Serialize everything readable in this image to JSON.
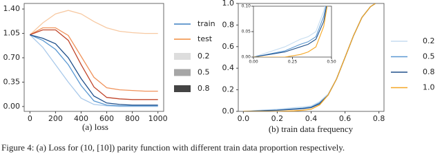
{
  "chart_data": [
    {
      "type": "line",
      "caption": "(a) loss",
      "x": [
        0,
        100,
        200,
        300,
        400,
        500,
        600,
        700,
        800,
        900,
        1000
      ],
      "xlim": [
        -45,
        1045
      ],
      "xticks": [
        0,
        200,
        400,
        600,
        800,
        1000
      ],
      "ylim": [
        -0.07,
        1.48
      ],
      "yticks": [
        {
          "value": 0,
          "label": "0.00"
        },
        {
          "value": 0.35,
          "label": "0.35"
        },
        {
          "value": 0.7,
          "label": "0.70"
        },
        {
          "value": 1.05,
          "label": "1.05"
        },
        {
          "value": 1.4,
          "label": "1.40"
        }
      ],
      "legend_lines": [
        {
          "name": "train",
          "color": "#3a7fc0"
        },
        {
          "name": "test",
          "color": "#f08c3c"
        }
      ],
      "groups": [
        {
          "name": "0.2",
          "shade": "#dddddd",
          "colors": [
            "#a9c9ea",
            "#f7c9a2"
          ],
          "train": [
            1.03,
            0.85,
            0.6,
            0.35,
            0.12,
            0.03,
            0.01,
            0,
            0,
            0,
            0
          ],
          "test": [
            1.03,
            1.2,
            1.33,
            1.38,
            1.33,
            1.22,
            1.13,
            1.08,
            1.06,
            1.05,
            1.05
          ]
        },
        {
          "name": "0.5",
          "shade": "#a6a6a6",
          "colors": [
            "#5a98d2",
            "#f0925a"
          ],
          "train": [
            1.03,
            0.95,
            0.82,
            0.6,
            0.3,
            0.08,
            0.02,
            0.01,
            0.01,
            0.01,
            0.01
          ],
          "test": [
            1.03,
            1.13,
            1.13,
            1.02,
            0.72,
            0.42,
            0.27,
            0.24,
            0.23,
            0.22,
            0.22
          ]
        },
        {
          "name": "0.8",
          "shade": "#444444",
          "colors": [
            "#1f4f8a",
            "#c0452a"
          ],
          "train": [
            1.03,
            0.98,
            0.9,
            0.7,
            0.4,
            0.15,
            0.05,
            0.03,
            0.02,
            0.02,
            0.02
          ],
          "test": [
            1.03,
            1.1,
            1.1,
            0.95,
            0.6,
            0.28,
            0.13,
            0.11,
            0.1,
            0.1,
            0.1
          ]
        }
      ]
    },
    {
      "type": "line",
      "caption": "(b) train data frequency",
      "x": [
        0,
        0.1,
        0.2,
        0.3,
        0.35,
        0.4,
        0.45,
        0.5,
        0.55,
        0.6,
        0.65,
        0.7,
        0.75,
        0.78
      ],
      "xlim": [
        -0.03,
        0.83
      ],
      "xticks": [
        {
          "value": 0,
          "label": "0.0"
        },
        0.2,
        0.4,
        0.6,
        0.8
      ],
      "ylim": [
        0,
        1
      ],
      "yticks": [
        {
          "value": 0,
          "label": "0.0"
        },
        0.2,
        0.4,
        0.6,
        0.8,
        {
          "value": 1,
          "label": "1.0"
        }
      ],
      "series": [
        {
          "name": "0.2",
          "color": "#c5dcf0",
          "values": [
            0,
            0.01,
            0.02,
            0.035,
            0.04,
            0.05,
            0.09,
            0.16,
            0.3,
            0.5,
            0.7,
            0.87,
            0.97,
            1.0
          ]
        },
        {
          "name": "0.5",
          "color": "#5a98d2",
          "values": [
            0,
            0.006,
            0.012,
            0.025,
            0.03,
            0.04,
            0.08,
            0.15,
            0.3,
            0.5,
            0.7,
            0.87,
            0.97,
            1.0
          ]
        },
        {
          "name": "0.8",
          "color": "#1f4f8a",
          "values": [
            0,
            0.005,
            0.01,
            0.02,
            0.025,
            0.035,
            0.07,
            0.15,
            0.3,
            0.5,
            0.7,
            0.87,
            0.97,
            1.0
          ]
        },
        {
          "name": "1.0",
          "color": "#f5a623",
          "values": [
            0,
            0,
            0,
            0.005,
            0.01,
            0.02,
            0.06,
            0.15,
            0.3,
            0.5,
            0.7,
            0.87,
            0.97,
            1.0
          ]
        }
      ],
      "inset": {
        "xlim": [
          0,
          0.5
        ],
        "ylim": [
          0,
          0.1
        ],
        "xticks": [
          {
            "value": 0,
            "label": "0.00"
          },
          {
            "value": 0.25,
            "label": "0.25"
          },
          {
            "value": 0.5,
            "label": "0.50"
          }
        ],
        "yticks": [
          {
            "value": 0,
            "label": "0.00"
          },
          {
            "value": 0.05,
            "label": "0.05"
          },
          {
            "value": 0.1,
            "label": "0.10"
          }
        ]
      }
    }
  ],
  "figure_caption": "Figure 4: (a) Loss for (10, [10]) parity function with different train data proportion respectively."
}
